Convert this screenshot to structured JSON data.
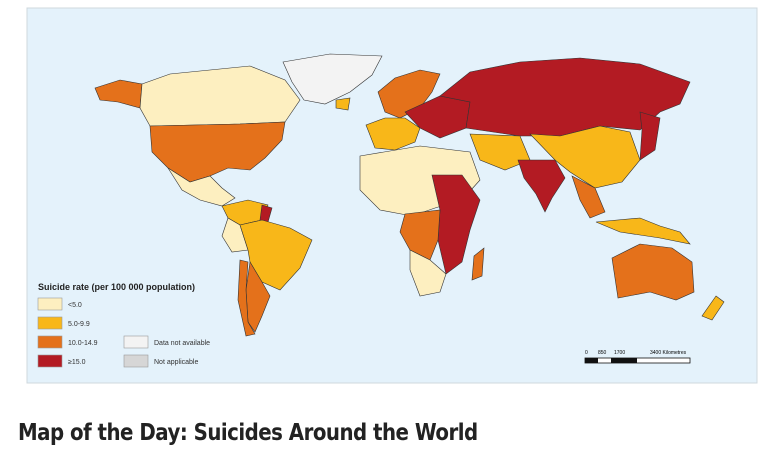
{
  "map": {
    "legend": {
      "title": "Suicide rate (per 100 000 population)",
      "items": [
        {
          "label": "<5.0",
          "color": "#fdefc0"
        },
        {
          "label": "5.0-9.9",
          "color": "#f8b719"
        },
        {
          "label": "10.0-14.9",
          "color": "#e4711b"
        },
        {
          "label": "≥15.0",
          "color": "#b31b23"
        },
        {
          "label": "Data not available",
          "color": "#f3f3f3"
        },
        {
          "label": "Not applicable",
          "color": "#d6d6d6"
        }
      ]
    },
    "scale_bar": {
      "labels": [
        "0",
        "850",
        "1700",
        "3400 Kilometres"
      ]
    }
  },
  "heading": "Map of the Day: Suicides Around the World"
}
